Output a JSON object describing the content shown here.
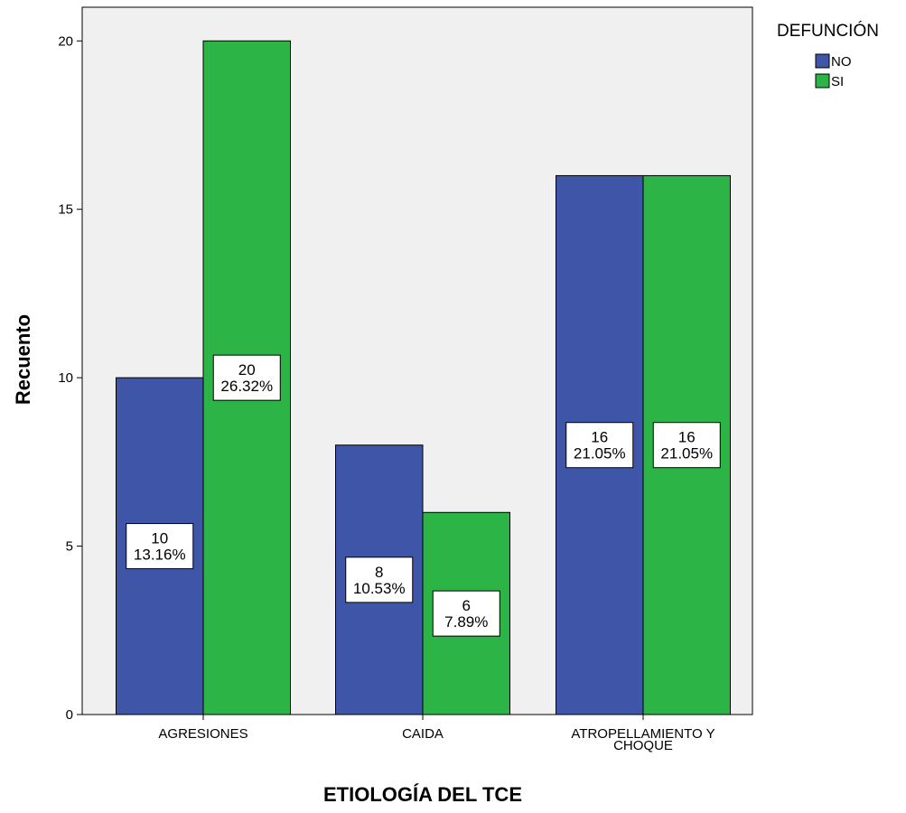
{
  "chart_data": {
    "type": "bar",
    "xlabel": "ETIOLOGÍA DEL TCE",
    "ylabel": "Recuento",
    "categories": [
      "AGRESIONES",
      "CAIDA",
      "ATROPELLAMIENTO Y CHOQUE"
    ],
    "series": [
      {
        "name": "NO",
        "values": [
          10,
          8,
          16
        ],
        "percent_labels": [
          "13.16%",
          "10.53%",
          "21.05%"
        ],
        "color": "#3f56a8"
      },
      {
        "name": "SI",
        "values": [
          20,
          6,
          16
        ],
        "percent_labels": [
          "26.32%",
          "7.89%",
          "21.05%"
        ],
        "color": "#2db446"
      }
    ],
    "ylim": [
      0,
      21
    ],
    "yticks": [
      0,
      5,
      10,
      15,
      20
    ],
    "grid": false,
    "legend": {
      "title": "DEFUNCIÓN",
      "placement": "right"
    },
    "plot_background": "#f0f0f0"
  }
}
